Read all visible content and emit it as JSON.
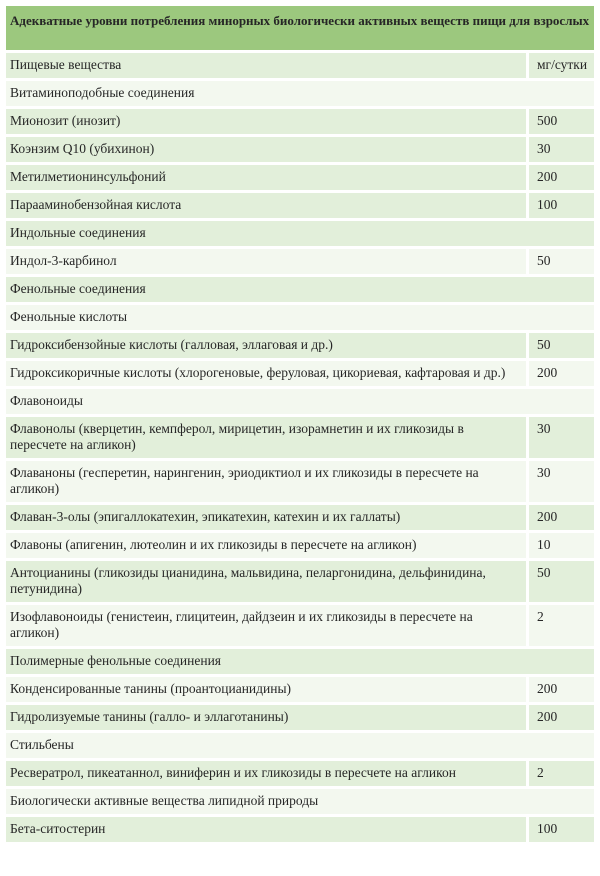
{
  "title": "Адекватные уровни потребления минорных биологически активных веществ пищи для взрослых",
  "table": {
    "header": {
      "substance": "Пищевые вещества",
      "unit": "мг/сутки",
      "band": "green"
    },
    "rows": [
      {
        "label": "Витаминоподобные соединения",
        "value": null,
        "band": "white",
        "type": "section"
      },
      {
        "label": "Мионозит (инозит)",
        "value": "500",
        "band": "green",
        "type": "data"
      },
      {
        "label": "Коэнзим Q10 (убихинон)",
        "value": "30",
        "band": "green",
        "type": "data"
      },
      {
        "label": "Метилметионинсульфоний",
        "value": "200",
        "band": "green",
        "type": "data"
      },
      {
        "label": "Парааминобензойная кислота",
        "value": "100",
        "band": "green",
        "type": "data"
      },
      {
        "label": "Индольные соединения",
        "value": null,
        "band": "green",
        "type": "section"
      },
      {
        "label": "Индол-3-карбинол",
        "value": "50",
        "band": "white",
        "type": "data"
      },
      {
        "label": "Фенольные соединения",
        "value": null,
        "band": "green",
        "type": "section"
      },
      {
        "label": "Фенольные кислоты",
        "value": null,
        "band": "white",
        "type": "section"
      },
      {
        "label": "Гидроксибензойные кислоты (галловая, эллаговая и др.)",
        "value": "50",
        "band": "green",
        "type": "data"
      },
      {
        "label": "Гидроксикоричные кислоты (хлорогеновые, феруловая, цикориевая, кафтаровая и др.)",
        "value": "200",
        "band": "white",
        "type": "data"
      },
      {
        "label": "Флавоноиды",
        "value": null,
        "band": "white",
        "type": "section"
      },
      {
        "label": "Флавонолы (кверцетин, кемпферол, мирицетин, изорамнетин и их гликозиды в пересчете на агликон)",
        "value": "30",
        "band": "green",
        "type": "data"
      },
      {
        "label": "Флаваноны (гесперетин, нарингенин, эриодиктиол и их гликозиды в пересчете на агликон)",
        "value": "30",
        "band": "white",
        "type": "data"
      },
      {
        "label": "Флаван-3-олы (эпигаллокатехин, эпикатехин, катехин и их галлаты)",
        "value": "200",
        "band": "green",
        "type": "data"
      },
      {
        "label": "Флавоны (апигенин, лютеолин и их гликозиды в пересчете на агликон)",
        "value": "10",
        "band": "white",
        "type": "data"
      },
      {
        "label": "Антоцианины (гликозиды цианидина, мальвидина, пеларгонидина, дельфинидина, петунидина)",
        "value": "50",
        "band": "green",
        "type": "data"
      },
      {
        "label": "Изофлавоноиды (генистеин, глицитеин, дайдзеин и их гликозиды в пересчете на агликон)",
        "value": "2",
        "band": "white",
        "type": "data"
      },
      {
        "label": "Полимерные фенольные соединения",
        "value": null,
        "band": "green",
        "type": "section"
      },
      {
        "label": "Конденсированные танины (проантоцианидины)",
        "value": "200",
        "band": "white",
        "type": "data"
      },
      {
        "label": "Гидролизуемые танины (галло- и эллаготанины)",
        "value": "200",
        "band": "green",
        "type": "data"
      },
      {
        "label": "Стильбены",
        "value": null,
        "band": "white",
        "type": "section"
      },
      {
        "label": "Ресвератрол, пикеатаннол, виниферин и их гликозиды в пересчете на агликон",
        "value": "2",
        "band": "green",
        "type": "data"
      },
      {
        "label": "Биологически активные вещества липидной природы",
        "value": null,
        "band": "white",
        "type": "section"
      },
      {
        "label": "Бета-ситостерин",
        "value": "100",
        "band": "green",
        "type": "data"
      }
    ]
  },
  "colors": {
    "title_bg": "#9cc87e",
    "band_green": "#e2efda",
    "band_white": "#f3f8ef",
    "text": "#262626",
    "page_bg": "#ffffff"
  }
}
